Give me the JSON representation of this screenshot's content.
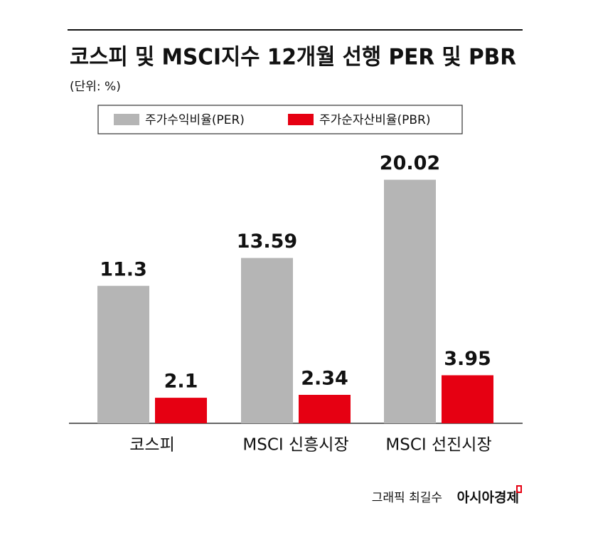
{
  "chart_data": {
    "type": "bar",
    "title": "코스피 및 MSCI지수 12개월 선행 PER 및 PBR",
    "subtitle": "(단위: %)",
    "categories": [
      "코스피",
      "MSCI 신흥시장",
      "MSCI 선진시장"
    ],
    "series": [
      {
        "name": "주가수익비율(PER)",
        "color": "#b5b5b5",
        "values": [
          11.3,
          13.59,
          20.02
        ]
      },
      {
        "name": "주가순자산비율(PBR)",
        "color": "#e60012",
        "values": [
          2.1,
          2.34,
          3.95
        ]
      }
    ]
  },
  "footer": {
    "credit": "그래픽 최길수",
    "source": "아시아경제"
  }
}
